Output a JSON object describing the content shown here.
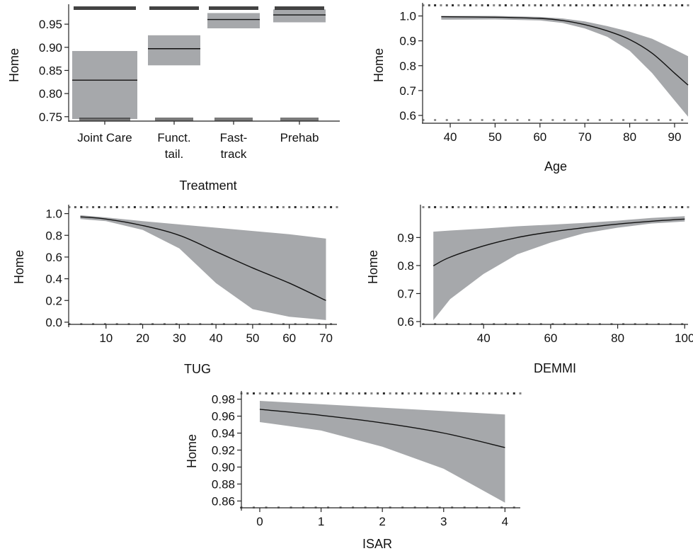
{
  "chart_data": [
    {
      "type": "bar",
      "xlabel": "Treatment",
      "ylabel": "Home",
      "categories": [
        "Joint Care",
        "Funct.\ntail.",
        "Fast-\ntrack",
        "Prehab"
      ],
      "estimate": [
        0.829,
        0.897,
        0.96,
        0.97
      ],
      "ci_lower": [
        0.745,
        0.861,
        0.941,
        0.954
      ],
      "ci_upper": [
        0.892,
        0.926,
        0.974,
        0.982
      ],
      "yticks": [
        0.75,
        0.8,
        0.85,
        0.9,
        0.95
      ],
      "ytick_labels": [
        "0.75",
        "0.80",
        "0.85",
        "0.90",
        "0.95"
      ],
      "ylim": [
        0.742,
        0.99
      ]
    },
    {
      "type": "line",
      "xlabel": "Age",
      "ylabel": "Home",
      "x": [
        38,
        50,
        60,
        65,
        70,
        75,
        80,
        85,
        90,
        93
      ],
      "y": [
        0.997,
        0.995,
        0.99,
        0.982,
        0.965,
        0.94,
        0.905,
        0.85,
        0.77,
        0.722
      ],
      "ci_lower": [
        0.985,
        0.986,
        0.982,
        0.972,
        0.95,
        0.916,
        0.86,
        0.77,
        0.66,
        0.595
      ],
      "ci_upper": [
        1.0,
        1.0,
        0.996,
        0.99,
        0.978,
        0.959,
        0.937,
        0.908,
        0.865,
        0.838
      ],
      "xticks": [
        40,
        50,
        60,
        70,
        80,
        90
      ],
      "xtick_labels": [
        "40",
        "50",
        "60",
        "70",
        "80",
        "90"
      ],
      "yticks": [
        0.6,
        0.7,
        0.8,
        0.9,
        1.0
      ],
      "ytick_labels": [
        "0.6",
        "0.7",
        "0.8",
        "0.9",
        "1.0"
      ],
      "xlim": [
        34,
        93
      ],
      "ylim": [
        0.58,
        1.03
      ]
    },
    {
      "type": "line",
      "xlabel": "TUG",
      "ylabel": "Home",
      "x": [
        3,
        10,
        20,
        30,
        40,
        50,
        60,
        70
      ],
      "y": [
        0.97,
        0.95,
        0.89,
        0.8,
        0.65,
        0.5,
        0.36,
        0.2
      ],
      "ci_lower": [
        0.95,
        0.93,
        0.85,
        0.68,
        0.36,
        0.12,
        0.05,
        0.02
      ],
      "ci_upper": [
        0.985,
        0.965,
        0.93,
        0.9,
        0.87,
        0.84,
        0.81,
        0.77
      ],
      "xticks": [
        10,
        20,
        30,
        40,
        50,
        60,
        70
      ],
      "xtick_labels": [
        "10",
        "20",
        "30",
        "40",
        "50",
        "60",
        "70"
      ],
      "yticks": [
        0.0,
        0.2,
        0.4,
        0.6,
        0.8,
        1.0
      ],
      "ytick_labels": [
        "0.0",
        "0.2",
        "0.4",
        "0.6",
        "0.8",
        "1.0"
      ],
      "xlim": [
        0,
        73
      ],
      "ylim": [
        -0.02,
        1.03
      ]
    },
    {
      "type": "line",
      "xlabel": "DEMMI",
      "ylabel": "Home",
      "x": [
        25,
        30,
        40,
        50,
        60,
        70,
        80,
        90,
        100
      ],
      "y": [
        0.799,
        0.83,
        0.87,
        0.9,
        0.92,
        0.935,
        0.948,
        0.958,
        0.966
      ],
      "ci_lower": [
        0.605,
        0.68,
        0.77,
        0.84,
        0.882,
        0.915,
        0.935,
        0.95,
        0.957
      ],
      "ci_upper": [
        0.921,
        0.925,
        0.932,
        0.94,
        0.946,
        0.952,
        0.96,
        0.97,
        0.976
      ],
      "xticks": [
        40,
        60,
        80,
        100
      ],
      "xtick_labels": [
        "40",
        "60",
        "80",
        "100"
      ],
      "yticks": [
        0.6,
        0.7,
        0.8,
        0.9
      ],
      "ytick_labels": [
        "0.6",
        "0.7",
        "0.8",
        "0.9"
      ],
      "xlim": [
        22,
        101
      ],
      "ylim": [
        0.59,
        0.997
      ]
    },
    {
      "type": "line",
      "xlabel": "ISAR",
      "ylabel": "Home",
      "x": [
        0,
        1,
        2,
        3,
        4
      ],
      "y": [
        0.968,
        0.961,
        0.952,
        0.94,
        0.923
      ],
      "ci_lower": [
        0.953,
        0.943,
        0.924,
        0.898,
        0.858
      ],
      "ci_upper": [
        0.978,
        0.974,
        0.97,
        0.966,
        0.962
      ],
      "xticks": [
        0,
        1,
        2,
        3,
        4
      ],
      "xtick_labels": [
        "0",
        "1",
        "2",
        "3",
        "4"
      ],
      "yticks": [
        0.86,
        0.88,
        0.9,
        0.92,
        0.94,
        0.96,
        0.98
      ],
      "ytick_labels": [
        "0.86",
        "0.88",
        "0.90",
        "0.92",
        "0.94",
        "0.96",
        "0.98"
      ],
      "xlim": [
        -0.3,
        4.25
      ],
      "ylim": [
        0.852,
        0.983
      ]
    }
  ],
  "colors": {
    "band": "#a6a8ab",
    "line": "#111111",
    "rug": "#222222",
    "axis": "#222222"
  }
}
